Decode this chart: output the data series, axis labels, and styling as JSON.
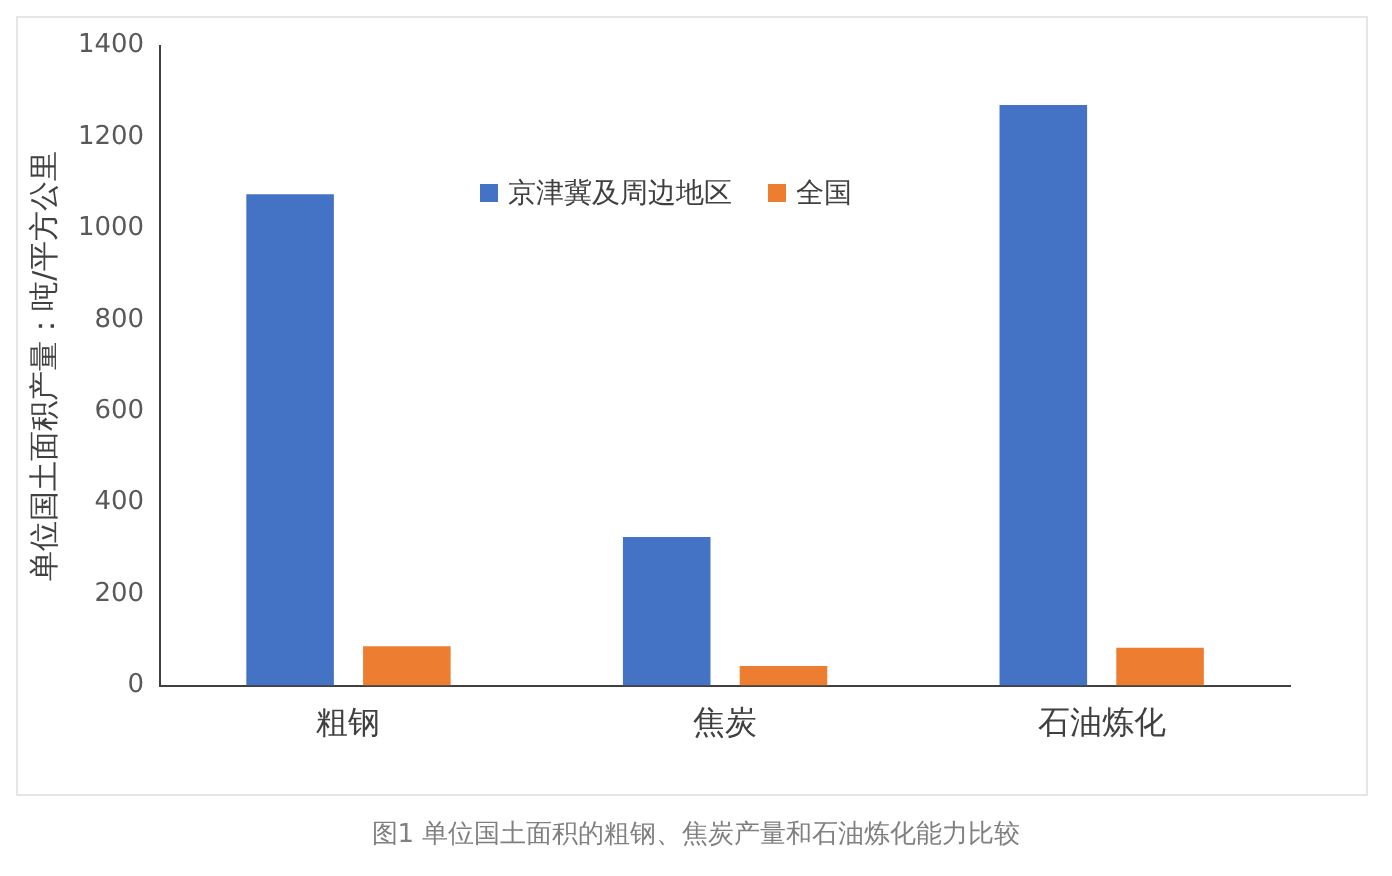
{
  "chart_data": {
    "type": "bar",
    "ylabel": "单位国土面积产量：吨/平方公里",
    "categories": [
      "粗钢",
      "焦炭",
      "石油炼化"
    ],
    "series": [
      {
        "name": "京津冀及周边地区",
        "color": "#4472c4",
        "values": [
          1075,
          325,
          1270
        ]
      },
      {
        "name": "全国",
        "color": "#ed7d31",
        "values": [
          86,
          43,
          83
        ]
      }
    ],
    "ylim": [
      0,
      1400
    ],
    "yticks": [
      0,
      200,
      400,
      600,
      800,
      1000,
      1200,
      1400
    ],
    "grid": false,
    "legend": "top",
    "annotations": [
      "图1 单位国土面积的粗钢、焦炭产量和石油炼化能力比较"
    ]
  }
}
